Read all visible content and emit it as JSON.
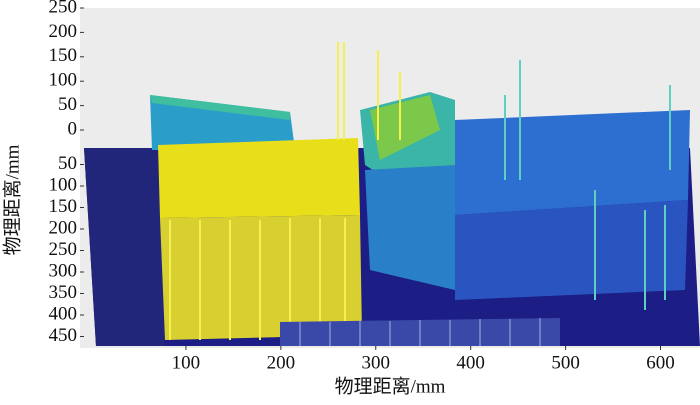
{
  "chart_data": {
    "type": "surface3d",
    "xlabel": "物理距离/mm",
    "ylabel": "物理距离/mm",
    "xlim": [
      0,
      630
    ],
    "xticks": [
      100,
      200,
      300,
      400,
      500,
      600
    ],
    "ylim": [
      0,
      500
    ],
    "yticks": [
      50,
      100,
      150,
      200,
      250,
      300,
      350,
      400,
      450
    ],
    "zlim": [
      0,
      250
    ],
    "zticks": [
      0,
      50,
      100,
      150,
      200,
      250
    ]
  }
}
